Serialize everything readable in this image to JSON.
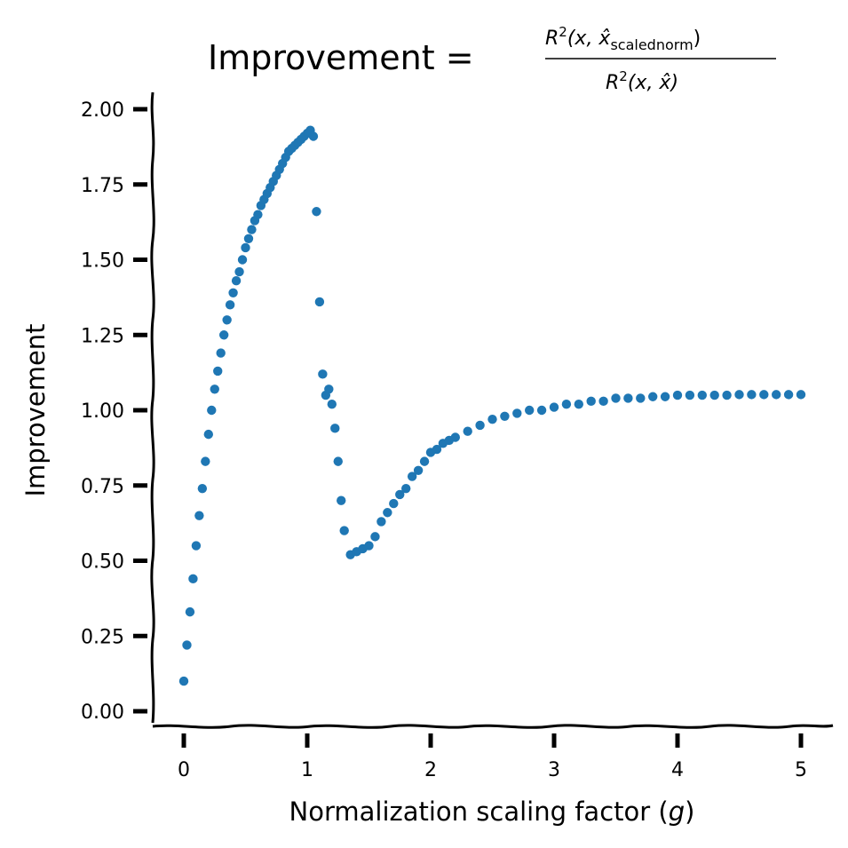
{
  "chart_data": {
    "type": "scatter",
    "title": "Improvement = ",
    "title_fraction": {
      "numerator": {
        "R": "R",
        "exp": "2",
        "args": "(x, x̂",
        "sub": "scalednorm",
        "close": ")"
      },
      "denominator": {
        "R": "R",
        "exp": "2",
        "args": "(x, x̂)"
      }
    },
    "xlabel": "Normalization scaling factor (",
    "xlabel_var": "g",
    "xlabel_end": ")",
    "ylabel": "Improvement",
    "xlim": [
      -0.25,
      5.25
    ],
    "ylim": [
      -0.05,
      2.05
    ],
    "xticks": [
      0,
      1,
      2,
      3,
      4,
      5
    ],
    "xtick_labels": [
      "0",
      "1",
      "2",
      "3",
      "4",
      "5"
    ],
    "yticks": [
      0.0,
      0.25,
      0.5,
      0.75,
      1.0,
      1.25,
      1.5,
      1.75,
      2.0
    ],
    "ytick_labels": [
      "0.00",
      "0.25",
      "0.50",
      "0.75",
      "1.00",
      "1.25",
      "1.50",
      "1.75",
      "2.00"
    ],
    "grid": false,
    "legend": "none",
    "color": "#1f77b4",
    "series": [
      {
        "x": [
          0.0,
          0.025,
          0.05,
          0.075,
          0.1,
          0.125,
          0.15,
          0.175,
          0.2,
          0.225,
          0.25,
          0.275,
          0.3,
          0.325,
          0.35,
          0.375,
          0.4,
          0.425,
          0.45,
          0.475,
          0.5,
          0.525,
          0.55,
          0.575,
          0.6,
          0.625,
          0.65,
          0.675,
          0.7,
          0.725,
          0.75,
          0.775,
          0.8,
          0.825,
          0.85,
          0.875,
          0.9,
          0.925,
          0.95,
          0.975,
          1.0,
          1.025,
          1.05,
          1.075,
          1.1,
          1.125,
          1.15,
          1.175,
          1.2,
          1.225,
          1.25,
          1.275,
          1.3,
          1.35,
          1.4,
          1.45,
          1.5,
          1.55,
          1.6,
          1.65,
          1.7,
          1.75,
          1.8,
          1.85,
          1.9,
          1.95,
          2.0,
          2.05,
          2.1,
          2.15,
          2.2,
          2.3,
          2.4,
          2.5,
          2.6,
          2.7,
          2.8,
          2.9,
          3.0,
          3.1,
          3.2,
          3.3,
          3.4,
          3.5,
          3.6,
          3.7,
          3.8,
          3.9,
          4.0,
          4.1,
          4.2,
          4.3,
          4.4,
          4.5,
          4.6,
          4.7,
          4.8,
          4.9,
          5.0
        ],
        "y": [
          0.1,
          0.22,
          0.33,
          0.44,
          0.55,
          0.65,
          0.74,
          0.83,
          0.92,
          1.0,
          1.07,
          1.13,
          1.19,
          1.25,
          1.3,
          1.35,
          1.39,
          1.43,
          1.46,
          1.5,
          1.54,
          1.57,
          1.6,
          1.63,
          1.65,
          1.68,
          1.7,
          1.72,
          1.74,
          1.76,
          1.78,
          1.8,
          1.82,
          1.84,
          1.86,
          1.87,
          1.88,
          1.89,
          1.9,
          1.91,
          1.92,
          1.93,
          1.91,
          1.66,
          1.36,
          1.12,
          1.05,
          1.07,
          1.02,
          0.94,
          0.83,
          0.7,
          0.6,
          0.52,
          0.53,
          0.54,
          0.55,
          0.58,
          0.63,
          0.66,
          0.69,
          0.72,
          0.74,
          0.78,
          0.8,
          0.83,
          0.86,
          0.87,
          0.89,
          0.9,
          0.91,
          0.93,
          0.95,
          0.97,
          0.98,
          0.99,
          1.0,
          1.0,
          1.01,
          1.02,
          1.02,
          1.03,
          1.03,
          1.04,
          1.04,
          1.04,
          1.045,
          1.045,
          1.05,
          1.05,
          1.05,
          1.05,
          1.05,
          1.052,
          1.052,
          1.052,
          1.052,
          1.052,
          1.052
        ]
      }
    ]
  }
}
